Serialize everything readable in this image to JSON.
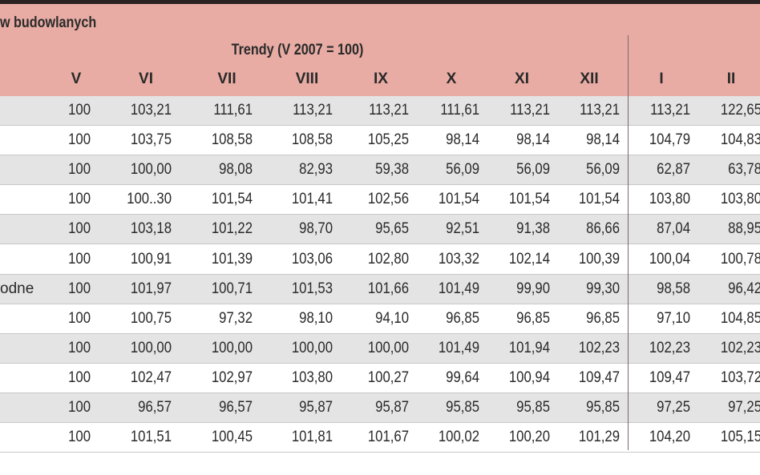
{
  "header": {
    "title": "w budowlanych",
    "group": "Trendy (V 2007 = 100)",
    "columns": [
      "V",
      "VI",
      "VII",
      "VIII",
      "IX",
      "X",
      "XI",
      "XII",
      "I",
      "II"
    ]
  },
  "table": {
    "rows": [
      {
        "values": [
          "100",
          "103,21",
          "111,61",
          "113,21",
          "113,21",
          "111,61",
          "113,21",
          "113,21",
          "113,21",
          "122,65"
        ]
      },
      {
        "values": [
          "100",
          "103,75",
          "108,58",
          "108,58",
          "105,25",
          "98,14",
          "98,14",
          "98,14",
          "104,79",
          "104,83"
        ]
      },
      {
        "values": [
          "100",
          "100,00",
          "98,08",
          "82,93",
          "59,38",
          "56,09",
          "56,09",
          "56,09",
          "62,87",
          "63,78"
        ]
      },
      {
        "values": [
          "100",
          "100..30",
          "101,54",
          "101,41",
          "102,56",
          "101,54",
          "101,54",
          "101,54",
          "103,80",
          "103,80"
        ]
      },
      {
        "values": [
          "100",
          "103,18",
          "101,22",
          "98,70",
          "95,65",
          "92,51",
          "91,38",
          "86,66",
          "87,04",
          "88,95"
        ]
      },
      {
        "values": [
          "100",
          "100,91",
          "101,39",
          "103,06",
          "102,80",
          "103,32",
          "102,14",
          "100,39",
          "100,04",
          "100,78"
        ]
      },
      {
        "label": "odne",
        "values": [
          "100",
          "101,97",
          "100,71",
          "101,53",
          "101,66",
          "101,49",
          "99,90",
          "99,30",
          "98,58",
          "96,42"
        ]
      },
      {
        "values": [
          "100",
          "100,75",
          "97,32",
          "98,10",
          "94,10",
          "96,85",
          "96,85",
          "96,85",
          "97,10",
          "104,85"
        ]
      },
      {
        "values": [
          "100",
          "100,00",
          "100,00",
          "100,00",
          "100,00",
          "101,49",
          "101,94",
          "102,23",
          "102,23",
          "102,23"
        ]
      },
      {
        "values": [
          "100",
          "102,47",
          "102,97",
          "103,80",
          "100,27",
          "99,64",
          "100,94",
          "109,47",
          "109,47",
          "103,72"
        ]
      },
      {
        "values": [
          "100",
          "96,57",
          "96,57",
          "95,87",
          "95,87",
          "95,85",
          "95,85",
          "95,85",
          "97,25",
          "97,25"
        ]
      },
      {
        "values": [
          "100",
          "101,51",
          "100,45",
          "101,81",
          "101,67",
          "100,02",
          "100,20",
          "101,29",
          "104,20",
          "105,15"
        ]
      }
    ]
  }
}
